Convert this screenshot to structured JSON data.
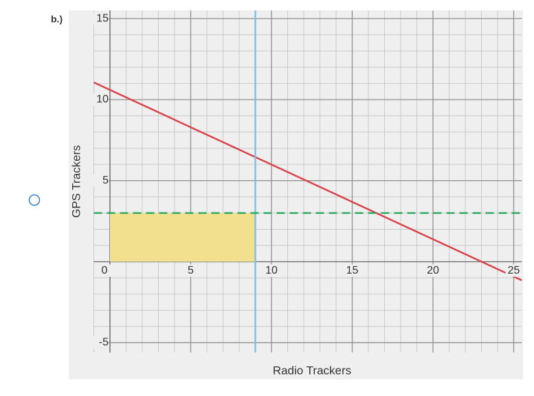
{
  "option_label": "b.)",
  "chart_data": {
    "type": "line",
    "xlabel": "Radio Trackers",
    "ylabel": "GPS Trackers",
    "xlim": [
      -1,
      25.5
    ],
    "ylim": [
      -5.6,
      15.5
    ],
    "xticks": [
      0,
      5,
      10,
      15,
      20,
      25
    ],
    "yticks": [
      -5,
      5,
      10,
      15
    ],
    "grid": true,
    "grid_step": 1,
    "series": [
      {
        "color": "#d9434b",
        "style": "solid",
        "x": [
          -1,
          25.5
        ],
        "values": [
          11.06,
          -1.15
        ]
      },
      {
        "color": "#7dbfe8",
        "style": "solid",
        "x": [
          9,
          9
        ],
        "values": [
          -5.6,
          15.5
        ]
      },
      {
        "color": "#2eaa5e",
        "style": "dashed",
        "x": [
          -1,
          25.5
        ],
        "values": [
          3,
          3
        ]
      }
    ],
    "shaded_region": {
      "x": [
        0,
        9
      ],
      "y": [
        0,
        3
      ],
      "color": "#f2e08f"
    }
  }
}
